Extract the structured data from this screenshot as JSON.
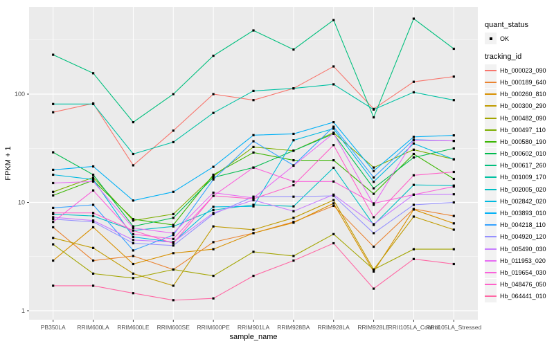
{
  "chart_data": {
    "type": "line",
    "title": "",
    "xlabel": "sample_name",
    "ylabel": "FPKM + 1",
    "y_scale": "log10",
    "ylim": [
      1,
      560
    ],
    "y_ticks": [
      1,
      10,
      100
    ],
    "grid": true,
    "legend_position": "right",
    "point_marker": "small black square (quant_status OK)",
    "categories": [
      "PB350LA",
      "RRIM600LA",
      "RRIM600LE",
      "RRIM600SE",
      "RRIM600PE",
      "RRIM901LA",
      "RRIM928BA",
      "RRIM928LA",
      "RRIM928LE",
      "RRII105LA_Control",
      "RRII105LA_Stressed"
    ],
    "series": [
      {
        "name": "Hb_000023_090",
        "color": "#F8766D",
        "values": [
          68,
          82,
          22,
          46,
          100,
          88,
          113,
          180,
          73,
          130,
          145
        ]
      },
      {
        "name": "Hb_000189_640",
        "color": "#EA8331",
        "values": [
          5.9,
          2.9,
          3.2,
          2.4,
          4.3,
          5.2,
          6.6,
          9.3,
          3.9,
          8.7,
          7.5
        ]
      },
      {
        "name": "Hb_000260_810",
        "color": "#D89000",
        "values": [
          2.9,
          5.9,
          2.7,
          3.4,
          3.7,
          5.2,
          6.5,
          9.8,
          2.3,
          8.6,
          6.4
        ]
      },
      {
        "name": "Hb_000300_290",
        "color": "#C09B00",
        "values": [
          4.7,
          3.8,
          2.2,
          1.7,
          6.0,
          5.6,
          7.2,
          10.5,
          2.4,
          7.4,
          5.6
        ]
      },
      {
        "name": "Hb_000482_090",
        "color": "#A3A500",
        "values": [
          4.1,
          2.2,
          2.0,
          2.4,
          2.1,
          3.5,
          3.2,
          5.1,
          2.4,
          3.7,
          3.7
        ]
      },
      {
        "name": "Hb_000497_110",
        "color": "#7CAE00",
        "values": [
          12.5,
          17.0,
          6.8,
          7.8,
          17.5,
          32.5,
          30.0,
          44.0,
          21.0,
          30.7,
          25.0
        ]
      },
      {
        "name": "Hb_000580_190",
        "color": "#39B600",
        "values": [
          11.6,
          16.0,
          7.0,
          6.2,
          18.0,
          28.9,
          24.5,
          24.5,
          12.0,
          28.0,
          16.5
        ]
      },
      {
        "name": "Hb_000602_010",
        "color": "#00BB4E",
        "values": [
          29.0,
          18.0,
          6.0,
          7.2,
          17.0,
          21.0,
          30.0,
          43.0,
          13.5,
          26.0,
          31.5
        ]
      },
      {
        "name": "Hb_000617_260",
        "color": "#00BF7D",
        "values": [
          231,
          156,
          55,
          100,
          226,
          387,
          258,
          483,
          61,
          497,
          262
        ]
      },
      {
        "name": "Hb_001009_170",
        "color": "#00C1A3",
        "values": [
          81,
          81,
          28,
          36,
          67,
          107,
          113,
          123,
          72,
          104,
          88
        ]
      },
      {
        "name": "Hb_002005_020",
        "color": "#00BFC4",
        "values": [
          7.8,
          7.5,
          5.5,
          6.0,
          8.5,
          9.5,
          9.2,
          20.9,
          6.2,
          14.5,
          14.3
        ]
      },
      {
        "name": "Hb_002842_020",
        "color": "#00BAE0",
        "values": [
          18.0,
          16.3,
          4.8,
          4.3,
          9.1,
          9.2,
          37.5,
          48.0,
          15.5,
          35.0,
          25.0
        ]
      },
      {
        "name": "Hb_003893_010",
        "color": "#00B0F6",
        "values": [
          20.0,
          21.5,
          10.4,
          12.5,
          21.3,
          41.8,
          43.0,
          55.0,
          19.5,
          40.3,
          41.6
        ]
      },
      {
        "name": "Hb_004218_110",
        "color": "#35A2FF",
        "values": [
          8.9,
          9.5,
          3.6,
          5.0,
          16.3,
          36.7,
          22.0,
          50.0,
          17.0,
          38.0,
          37.0
        ]
      },
      {
        "name": "Hb_004920_120",
        "color": "#9590FF",
        "values": [
          7.0,
          6.6,
          4.2,
          4.0,
          7.8,
          11.3,
          11.3,
          11.5,
          5.2,
          9.5,
          10.0
        ]
      },
      {
        "name": "Hb_005490_030",
        "color": "#C77CFF",
        "values": [
          7.3,
          6.8,
          4.5,
          4.3,
          8.0,
          10.5,
          8.3,
          11.8,
          6.3,
          11.8,
          11.9
        ]
      },
      {
        "name": "Hb_011953_020",
        "color": "#E76BF3",
        "values": [
          15.1,
          15.6,
          5.8,
          5.2,
          12.3,
          11.0,
          21.8,
          43.5,
          9.5,
          37.5,
          37.0
        ]
      },
      {
        "name": "Hb_019654_030",
        "color": "#FA62DB",
        "values": [
          6.6,
          12.9,
          5.1,
          4.6,
          11.5,
          21.0,
          15.6,
          15.6,
          9.8,
          11.8,
          14.0
        ]
      },
      {
        "name": "Hb_048476_050",
        "color": "#FF61C9",
        "values": [
          8.0,
          8.0,
          5.5,
          4.2,
          11.5,
          10.8,
          14.4,
          33.8,
          7.3,
          17.8,
          19.1
        ]
      },
      {
        "name": "Hb_064441_010",
        "color": "#FF67A4",
        "values": [
          1.7,
          1.7,
          1.45,
          1.25,
          1.3,
          2.1,
          2.9,
          4.2,
          1.6,
          3.0,
          2.7
        ]
      }
    ],
    "panel_bg": "#EBEBEB",
    "gridline_color": "#FFFFFF",
    "axis_text_color": "#4D4D4D"
  },
  "legend": {
    "quant_status_title": "quant_status",
    "ok_label": "OK",
    "tracking_id_title": "tracking_id"
  }
}
